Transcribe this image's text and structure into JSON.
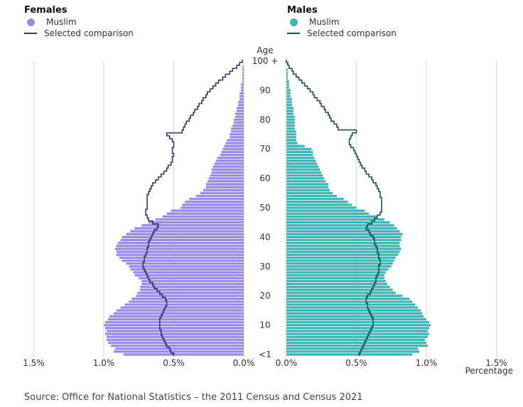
{
  "legend": {
    "females": {
      "title": "Females",
      "series_label": "Muslim",
      "comparison_label": "Selected comparison"
    },
    "males": {
      "title": "Males",
      "series_label": "Muslim",
      "comparison_label": "Selected comparison"
    }
  },
  "source": "Source: Office for National Statistics – the 2011 Census and Census 2021",
  "colors": {
    "female_bar": "#9b8ae6",
    "female_line": "#3d3768",
    "male_bar": "#41b5b5",
    "male_line": "#1d4f55",
    "grid": "#d9d9d9"
  },
  "chart_data": {
    "type": "bar",
    "orientation": "population pyramid (horizontal bars)",
    "title": "",
    "y_axis": {
      "label": "Age",
      "range": [
        0,
        100
      ],
      "tick_values": [
        0,
        10,
        20,
        30,
        40,
        50,
        60,
        70,
        80,
        90,
        100
      ],
      "tick_labels": [
        "<1",
        "10",
        "20",
        "30",
        "40",
        "50",
        "60",
        "70",
        "80",
        "90",
        "100 +"
      ]
    },
    "x_axis": {
      "label": "Percentage",
      "range_each_side": [
        0,
        1.5
      ],
      "female_tick_labels": [
        "1.5%",
        "1.0%",
        "0.5%",
        "0.0%"
      ],
      "male_tick_labels": [
        "0.0%",
        "0.5%",
        "1.0%",
        "1.5%"
      ],
      "female_tick_values": [
        1.5,
        1.0,
        0.5,
        0.0
      ],
      "male_tick_values": [
        0.0,
        0.5,
        1.0,
        1.5
      ],
      "grid": true
    },
    "ages": [
      0,
      1,
      2,
      3,
      4,
      5,
      6,
      7,
      8,
      9,
      10,
      11,
      12,
      13,
      14,
      15,
      16,
      17,
      18,
      19,
      20,
      21,
      22,
      23,
      24,
      25,
      26,
      27,
      28,
      29,
      30,
      31,
      32,
      33,
      34,
      35,
      36,
      37,
      38,
      39,
      40,
      41,
      42,
      43,
      44,
      45,
      46,
      47,
      48,
      49,
      50,
      51,
      52,
      53,
      54,
      55,
      56,
      57,
      58,
      59,
      60,
      61,
      62,
      63,
      64,
      65,
      66,
      67,
      68,
      69,
      70,
      71,
      72,
      73,
      74,
      75,
      76,
      77,
      78,
      79,
      80,
      81,
      82,
      83,
      84,
      85,
      86,
      87,
      88,
      89,
      90,
      91,
      92,
      93,
      94,
      95,
      96,
      97,
      98,
      99,
      100
    ],
    "series": [
      {
        "name": "Females Muslim",
        "values": [
          0.86,
          0.93,
          0.92,
          0.95,
          0.97,
          0.98,
          0.98,
          0.99,
          0.98,
          0.99,
          1.0,
          0.99,
          0.97,
          0.96,
          0.93,
          0.91,
          0.88,
          0.85,
          0.82,
          0.8,
          0.77,
          0.76,
          0.74,
          0.74,
          0.73,
          0.73,
          0.75,
          0.78,
          0.79,
          0.81,
          0.82,
          0.84,
          0.87,
          0.89,
          0.91,
          0.91,
          0.92,
          0.91,
          0.9,
          0.88,
          0.87,
          0.84,
          0.81,
          0.78,
          0.73,
          0.68,
          0.63,
          0.58,
          0.55,
          0.52,
          0.45,
          0.44,
          0.42,
          0.39,
          0.34,
          0.31,
          0.29,
          0.27,
          0.27,
          0.26,
          0.25,
          0.24,
          0.23,
          0.23,
          0.22,
          0.21,
          0.2,
          0.19,
          0.17,
          0.16,
          0.15,
          0.14,
          0.13,
          0.12,
          0.1,
          0.1,
          0.09,
          0.09,
          0.08,
          0.07,
          0.07,
          0.06,
          0.06,
          0.05,
          0.05,
          0.04,
          0.04,
          0.03,
          0.03,
          0.03,
          0.02,
          0.02,
          0.02,
          0.01,
          0.01,
          0.01,
          0.01,
          0.01,
          0.01,
          0.0,
          0.0
        ]
      },
      {
        "name": "Females Selected comparison",
        "values": [
          0.5,
          0.52,
          0.53,
          0.55,
          0.56,
          0.57,
          0.58,
          0.59,
          0.59,
          0.6,
          0.6,
          0.6,
          0.6,
          0.59,
          0.58,
          0.57,
          0.56,
          0.55,
          0.55,
          0.56,
          0.58,
          0.6,
          0.62,
          0.64,
          0.65,
          0.67,
          0.68,
          0.69,
          0.7,
          0.71,
          0.72,
          0.72,
          0.71,
          0.71,
          0.7,
          0.69,
          0.69,
          0.68,
          0.68,
          0.67,
          0.66,
          0.65,
          0.64,
          0.62,
          0.61,
          0.65,
          0.68,
          0.69,
          0.7,
          0.7,
          0.69,
          0.69,
          0.69,
          0.69,
          0.69,
          0.68,
          0.67,
          0.66,
          0.65,
          0.63,
          0.61,
          0.59,
          0.57,
          0.55,
          0.54,
          0.52,
          0.51,
          0.51,
          0.5,
          0.51,
          0.51,
          0.5,
          0.5,
          0.51,
          0.53,
          0.55,
          0.44,
          0.43,
          0.42,
          0.41,
          0.39,
          0.38,
          0.36,
          0.35,
          0.33,
          0.32,
          0.3,
          0.29,
          0.27,
          0.26,
          0.24,
          0.22,
          0.2,
          0.18,
          0.15,
          0.13,
          0.1,
          0.08,
          0.05,
          0.03,
          0.01
        ]
      },
      {
        "name": "Males Muslim",
        "values": [
          0.9,
          0.95,
          0.94,
          1.01,
          1.0,
          0.99,
          1.01,
          1.02,
          1.01,
          1.02,
          1.03,
          1.02,
          1.0,
          0.98,
          0.97,
          0.96,
          0.94,
          0.92,
          0.9,
          0.88,
          0.83,
          0.78,
          0.76,
          0.74,
          0.72,
          0.71,
          0.7,
          0.7,
          0.71,
          0.73,
          0.75,
          0.76,
          0.77,
          0.78,
          0.8,
          0.81,
          0.82,
          0.81,
          0.81,
          0.82,
          0.82,
          0.83,
          0.81,
          0.79,
          0.77,
          0.74,
          0.7,
          0.65,
          0.59,
          0.56,
          0.5,
          0.47,
          0.44,
          0.41,
          0.36,
          0.33,
          0.31,
          0.3,
          0.3,
          0.28,
          0.27,
          0.26,
          0.25,
          0.24,
          0.23,
          0.22,
          0.21,
          0.2,
          0.19,
          0.19,
          0.18,
          0.13,
          0.08,
          0.07,
          0.07,
          0.07,
          0.07,
          0.06,
          0.06,
          0.06,
          0.06,
          0.06,
          0.05,
          0.05,
          0.05,
          0.04,
          0.04,
          0.04,
          0.03,
          0.03,
          0.03,
          0.02,
          0.02,
          0.02,
          0.01,
          0.01,
          0.01,
          0.01,
          0.0,
          0.0,
          0.0
        ]
      },
      {
        "name": "Males Selected comparison",
        "values": [
          0.52,
          0.53,
          0.54,
          0.55,
          0.56,
          0.57,
          0.58,
          0.59,
          0.6,
          0.61,
          0.62,
          0.62,
          0.62,
          0.61,
          0.6,
          0.59,
          0.58,
          0.58,
          0.57,
          0.57,
          0.58,
          0.6,
          0.61,
          0.62,
          0.63,
          0.64,
          0.64,
          0.65,
          0.66,
          0.66,
          0.66,
          0.67,
          0.67,
          0.66,
          0.66,
          0.65,
          0.65,
          0.64,
          0.63,
          0.63,
          0.62,
          0.6,
          0.59,
          0.57,
          0.58,
          0.61,
          0.63,
          0.65,
          0.67,
          0.68,
          0.68,
          0.68,
          0.68,
          0.68,
          0.67,
          0.67,
          0.66,
          0.65,
          0.64,
          0.62,
          0.61,
          0.59,
          0.57,
          0.56,
          0.54,
          0.53,
          0.52,
          0.51,
          0.5,
          0.49,
          0.48,
          0.46,
          0.45,
          0.45,
          0.46,
          0.47,
          0.5,
          0.37,
          0.36,
          0.34,
          0.32,
          0.31,
          0.3,
          0.28,
          0.27,
          0.25,
          0.24,
          0.22,
          0.2,
          0.19,
          0.17,
          0.15,
          0.13,
          0.11,
          0.09,
          0.07,
          0.05,
          0.04,
          0.02,
          0.01,
          0.0
        ]
      }
    ]
  }
}
